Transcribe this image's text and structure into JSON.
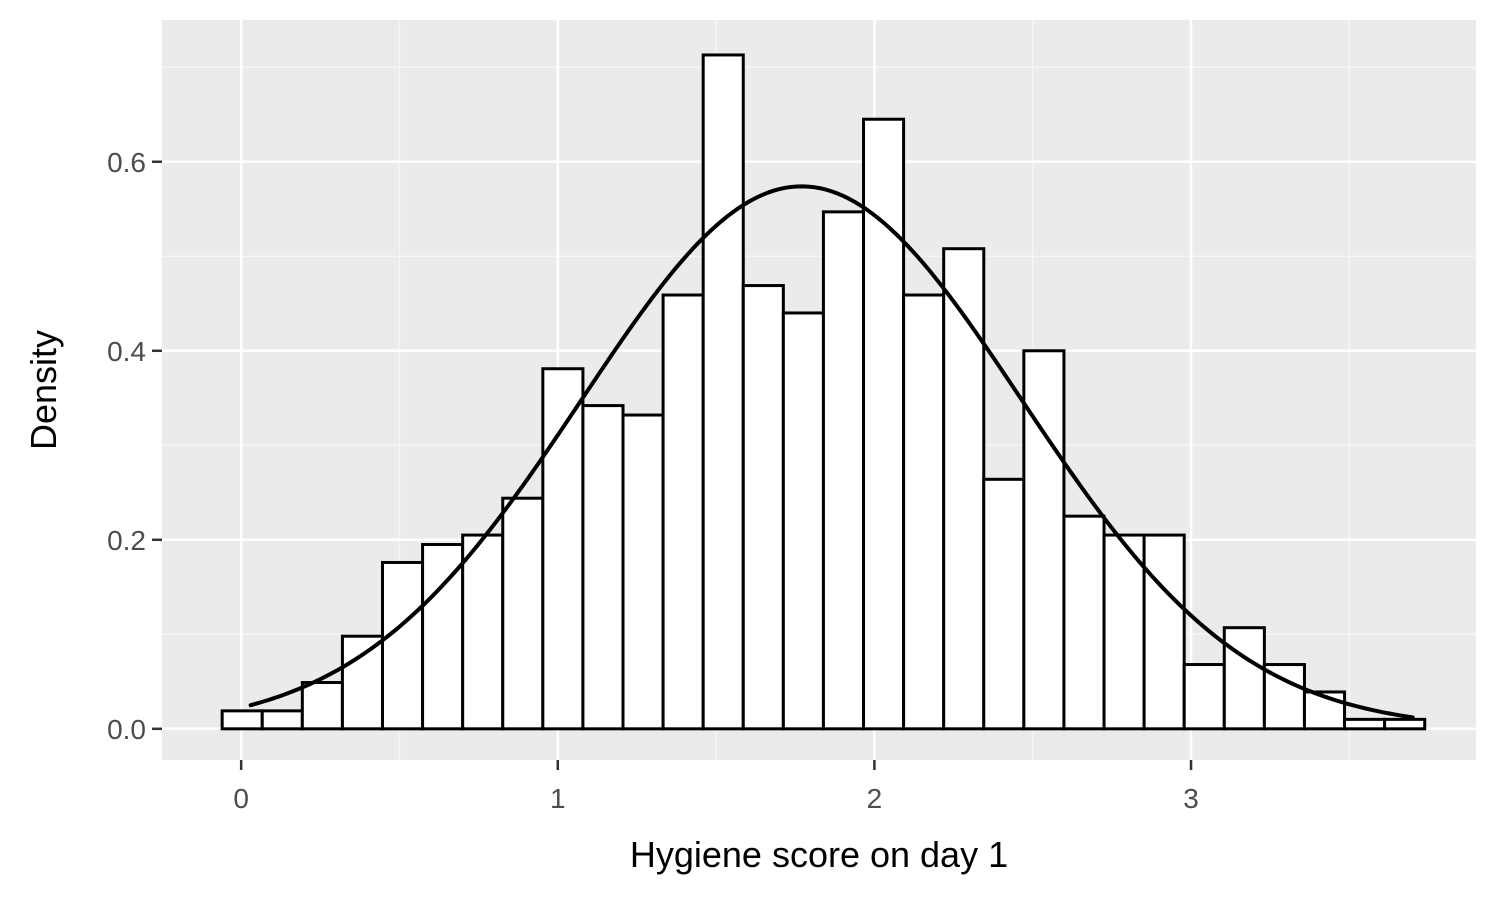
{
  "chart_data": {
    "type": "bar",
    "subtype": "histogram-with-density-curve",
    "title": "",
    "xlabel": "Hygiene score on day 1",
    "ylabel": "Density",
    "xlim": [
      -0.25,
      3.9
    ],
    "ylim": [
      -0.033,
      0.75
    ],
    "x_ticks": [
      0,
      1,
      2,
      3
    ],
    "x_tick_labels": [
      "0",
      "1",
      "2",
      "3"
    ],
    "y_ticks": [
      0.0,
      0.2,
      0.4,
      0.6
    ],
    "y_tick_labels": [
      "0.0",
      "0.2",
      "0.4",
      "0.6"
    ],
    "grid": true,
    "legend": "none",
    "bins": {
      "x_start": -0.06,
      "bin_width": 0.1266,
      "densities": [
        0.019,
        0.019,
        0.049,
        0.098,
        0.176,
        0.195,
        0.205,
        0.244,
        0.381,
        0.342,
        0.332,
        0.459,
        0.713,
        0.469,
        0.44,
        0.547,
        0.645,
        0.459,
        0.508,
        0.264,
        0.4,
        0.225,
        0.205,
        0.205,
        0.068,
        0.107,
        0.068,
        0.039,
        0.01,
        0.01
      ]
    },
    "density_curve": {
      "distribution": "normal",
      "mean": 1.77,
      "sd": 0.695,
      "x_range": [
        0.03,
        3.7
      ]
    },
    "colors": {
      "panel_background": "#ebebeb",
      "grid_major": "#ffffff",
      "grid_minor": "#f5f5f5",
      "bar_fill": "#ffffff",
      "bar_stroke": "#000000",
      "curve": "#000000"
    }
  }
}
